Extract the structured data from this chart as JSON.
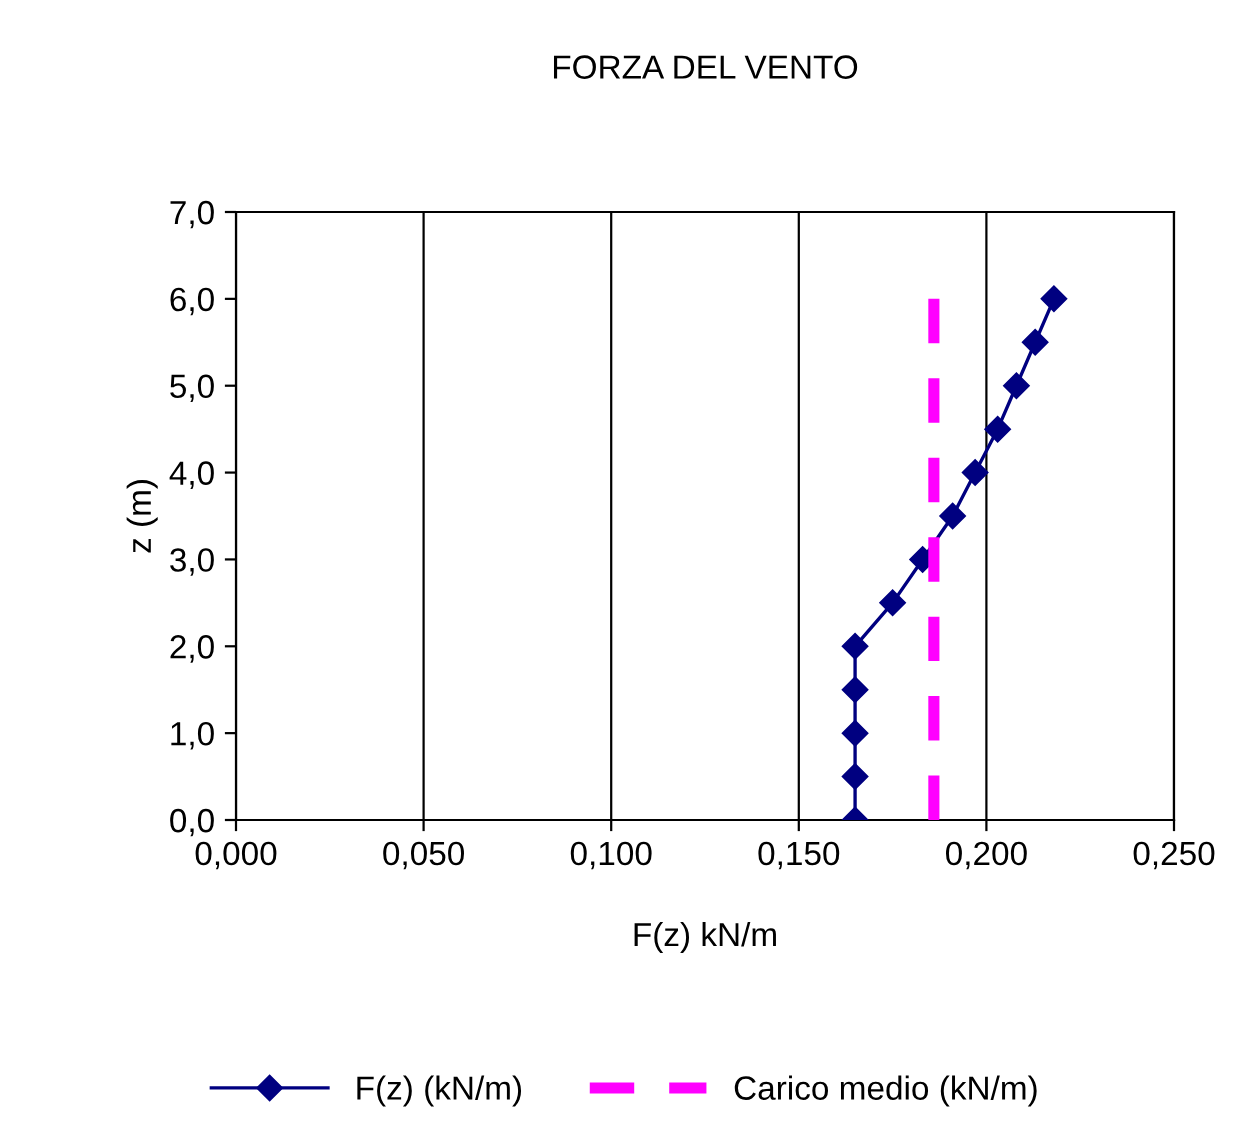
{
  "chart_data": {
    "type": "line",
    "title": "FORZA DEL VENTO",
    "xlabel": "F(z) kN/m",
    "ylabel": "z (m)",
    "series": [
      {
        "name": "F(z) (kN/m)",
        "color": "#000080",
        "x": [
          0.165,
          0.165,
          0.165,
          0.165,
          0.165,
          0.175,
          0.183,
          0.191,
          0.197,
          0.203,
          0.208,
          0.213,
          0.218
        ],
        "values": [
          0.0,
          0.5,
          1.0,
          1.5,
          2.0,
          2.5,
          3.0,
          3.5,
          4.0,
          4.5,
          5.0,
          5.5,
          6.0
        ],
        "marker": "diamond",
        "line_style": "solid"
      },
      {
        "name": "Carico medio (kN/m)",
        "color": "#ff00ff",
        "x": [
          0.186,
          0.186
        ],
        "values": [
          0.0,
          6.0
        ],
        "marker": "none",
        "line_style": "dashed"
      }
    ],
    "xlim": [
      0,
      0.25
    ],
    "xticks": [
      {
        "value": 0,
        "label": "0,000"
      },
      {
        "value": 0.05,
        "label": "0,050"
      },
      {
        "value": 0.1,
        "label": "0,100"
      },
      {
        "value": 0.15,
        "label": "0,150"
      },
      {
        "value": 0.2,
        "label": "0,200"
      },
      {
        "value": 0.25,
        "label": "0,250"
      }
    ],
    "ylim": [
      0,
      7
    ],
    "yticks": [
      {
        "value": 0,
        "label": "0,0"
      },
      {
        "value": 1,
        "label": "1,0"
      },
      {
        "value": 2,
        "label": "2,0"
      },
      {
        "value": 3,
        "label": "3,0"
      },
      {
        "value": 4,
        "label": "4,0"
      },
      {
        "value": 5,
        "label": "5,0"
      },
      {
        "value": 6,
        "label": "6,0"
      },
      {
        "value": 7,
        "label": "7,0"
      }
    ],
    "grid": "x",
    "legend": "bottom"
  }
}
